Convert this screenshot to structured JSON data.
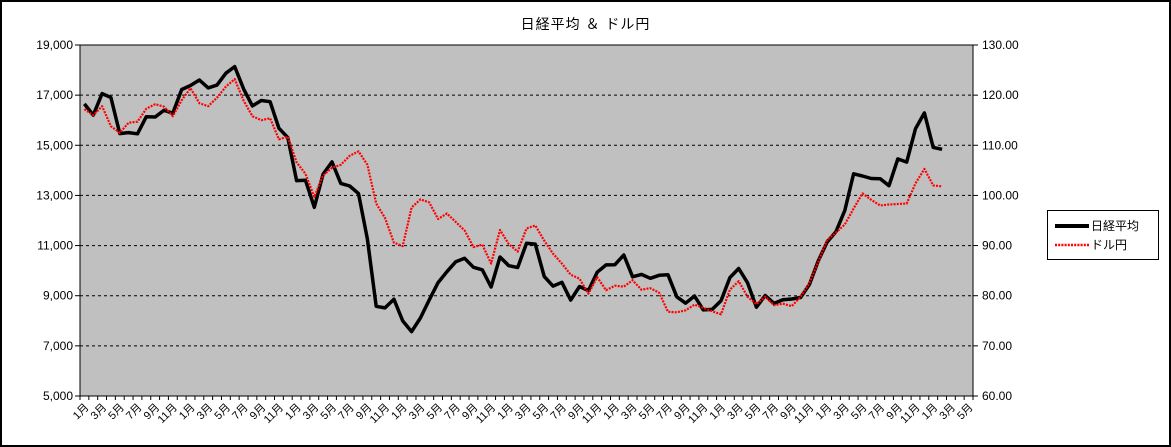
{
  "chart_data": {
    "type": "line",
    "title": "日経平均 ＆ ドル円",
    "plot_bg": "#c0c0c0",
    "gridline_color": "#000000",
    "n_categories": 101,
    "x_label_interval": 2,
    "x_labels": [
      "1月",
      "3月",
      "5月",
      "7月",
      "9月",
      "11月",
      "1月",
      "3月",
      "5月",
      "7月",
      "9月",
      "11月",
      "1月",
      "3月",
      "5月",
      "7月",
      "9月",
      "11月",
      "1月",
      "3月",
      "5月",
      "7月",
      "9月",
      "11月",
      "1月",
      "3月",
      "5月",
      "7月",
      "9月",
      "11月",
      "1月",
      "3月",
      "5月",
      "7月",
      "9月",
      "11月",
      "1月",
      "3月",
      "5月",
      "7月",
      "9月",
      "11月",
      "1月",
      "3月",
      "5月",
      "7月",
      "9月",
      "11月",
      "1月",
      "3月",
      "5月"
    ],
    "axes": {
      "left": {
        "min": 5000,
        "max": 19000,
        "tick_labels": [
          "19,000",
          "17,000",
          "15,000",
          "13,000",
          "11,000",
          "9,000",
          "7,000",
          "5,000"
        ]
      },
      "right": {
        "min": 60,
        "max": 130,
        "tick_labels": [
          "130.00",
          "120.00",
          "110.00",
          "100.00",
          "90.00",
          "80.00",
          "70.00",
          "60.00"
        ]
      }
    },
    "series": [
      {
        "name": "日経平均",
        "axis": "left",
        "color": "#000000",
        "style": "solid-thick",
        "values": [
          16649,
          16205,
          17060,
          16906,
          15467,
          15505,
          15457,
          16141,
          16128,
          16399,
          16274,
          17226,
          17383,
          17604,
          17288,
          17400,
          17876,
          18138,
          17249,
          16569,
          16786,
          16738,
          15681,
          15308,
          13592,
          13603,
          12526,
          13850,
          14339,
          13481,
          13377,
          13073,
          11260,
          8577,
          8512,
          8860,
          7994,
          7568,
          8110,
          8828,
          9523,
          9958,
          10357,
          10493,
          10133,
          10035,
          9346,
          10546,
          10198,
          10126,
          11090,
          11057,
          9769,
          9383,
          9537,
          8824,
          9369,
          9202,
          9937,
          10229,
          10237,
          10624,
          9755,
          9850,
          9694,
          9816,
          9833,
          8955,
          8700,
          8988,
          8435,
          8455,
          8803,
          9723,
          10084,
          9521,
          8543,
          9007,
          8695,
          8840,
          8870,
          8928,
          9446,
          10395,
          11139,
          11559,
          12398,
          13861,
          13775,
          13677,
          13668,
          13389,
          14456,
          14328,
          15662,
          16291,
          14915,
          14841
        ]
      },
      {
        "name": "ドル円",
        "axis": "right",
        "color": "#ff0000",
        "style": "patterned",
        "values": [
          117.2,
          116.0,
          117.8,
          113.8,
          112.5,
          114.5,
          114.7,
          117.3,
          118.2,
          117.7,
          115.8,
          119.0,
          121.4,
          118.4,
          117.8,
          119.5,
          121.7,
          123.2,
          118.9,
          115.8,
          115.0,
          115.4,
          111.2,
          111.7,
          106.6,
          104.3,
          99.7,
          104.0,
          105.5,
          106.1,
          107.9,
          108.8,
          106.1,
          98.4,
          95.5,
          90.6,
          89.9,
          97.6,
          99.2,
          98.6,
          95.3,
          96.4,
          94.7,
          93.0,
          89.7,
          90.2,
          86.4,
          93.1,
          90.3,
          88.8,
          93.4,
          94.0,
          91.0,
          88.4,
          86.4,
          84.2,
          83.4,
          80.4,
          83.7,
          81.1,
          82.0,
          81.8,
          83.1,
          81.2,
          81.5,
          80.6,
          76.8,
          76.7,
          77.1,
          78.2,
          77.6,
          76.9,
          76.3,
          81.2,
          82.9,
          79.8,
          78.3,
          79.8,
          78.1,
          78.4,
          77.9,
          79.8,
          82.5,
          86.8,
          91.1,
          92.6,
          94.2,
          97.4,
          100.4,
          99.1,
          98.0,
          98.2,
          98.3,
          98.4,
          102.4,
          105.3,
          102.0,
          101.8
        ]
      }
    ],
    "legend_position": "right"
  }
}
